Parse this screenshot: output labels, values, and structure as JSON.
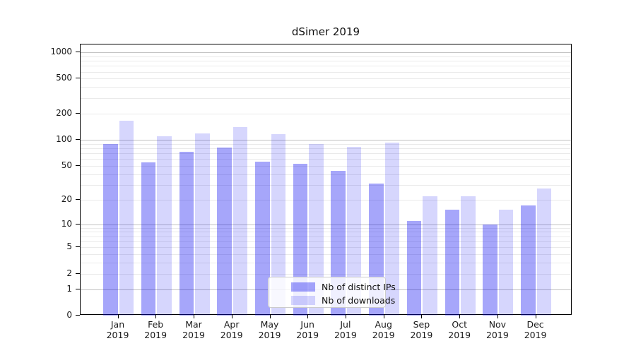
{
  "chart_data": {
    "type": "bar",
    "title": "dSimer 2019",
    "categories": [
      "Jan",
      "Feb",
      "Mar",
      "Apr",
      "May",
      "Jun",
      "Jul",
      "Aug",
      "Sep",
      "Oct",
      "Nov",
      "Dec"
    ],
    "category_year": "2019",
    "series": [
      {
        "name": "Nb of distinct IPs",
        "color": "rgba(0,0,240,0.35)",
        "color_hex": "#a9a9f6",
        "values": [
          90,
          55,
          72,
          81,
          56,
          53,
          44,
          31,
          11,
          15,
          10,
          17
        ]
      },
      {
        "name": "Nb of downloads",
        "color": "rgba(0,0,240,0.16)",
        "color_hex": "#d9d9fa",
        "values": [
          165,
          110,
          118,
          140,
          117,
          89,
          83,
          93,
          22,
          22,
          15,
          27
        ]
      }
    ],
    "yscale": "log1p",
    "ytick_values": [
      1000,
      500,
      200,
      100,
      50,
      20,
      10,
      5,
      2,
      1,
      0
    ],
    "ytick_labels": [
      "1000",
      "500",
      "200",
      "100",
      "50",
      "20",
      "10",
      "5",
      "2",
      "1",
      "0"
    ],
    "ylim": [
      0,
      1226
    ],
    "grid": "on",
    "legend_position": "inside lower center-right",
    "colors": {
      "major_grid": "#c2c2c2",
      "minor_grid": "#eaeaea",
      "spine": "#000000",
      "text": "#1a1a1a"
    }
  }
}
